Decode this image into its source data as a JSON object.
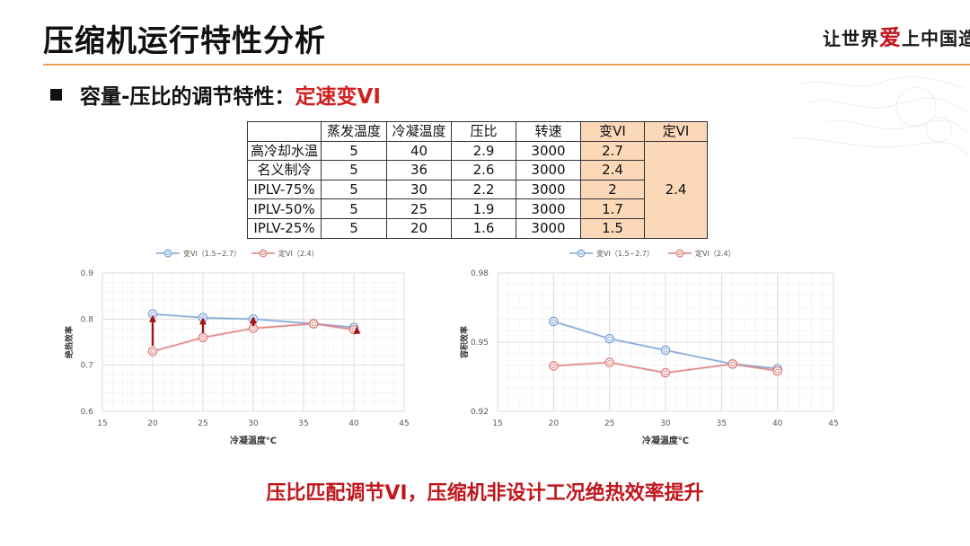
{
  "page": {
    "title": "压缩机运行特性分析",
    "subtitle_prefix": "容量-压比的调节特性：",
    "subtitle_accent": "定速变VI",
    "footer": "压比匹配调节VI，压缩机非设计工况绝热效率提升"
  },
  "logo": {
    "part1": "让世界",
    "part2": "爱",
    "part3": "上中国造"
  },
  "colors": {
    "accent_red": "#d11f1f",
    "rule_orange": "#e8a25a",
    "shade_orange": "#fbd8b8",
    "series_blue": "#7ea4d8",
    "series_red": "#e07f7f",
    "arrow_dark_red": "#a21212"
  },
  "table": {
    "headers": [
      "",
      "蒸发温度",
      "冷凝温度",
      "压比",
      "转速",
      "变VI",
      "定VI"
    ],
    "rows": [
      {
        "label": "高冷却水温",
        "evap": "5",
        "cond": "40",
        "ratio": "2.9",
        "speed": "3000",
        "vvi": "2.7"
      },
      {
        "label": "名义制冷",
        "evap": "5",
        "cond": "36",
        "ratio": "2.6",
        "speed": "3000",
        "vvi": "2.4"
      },
      {
        "label": "IPLV-75%",
        "evap": "5",
        "cond": "30",
        "ratio": "2.2",
        "speed": "3000",
        "vvi": "2"
      },
      {
        "label": "IPLV-50%",
        "evap": "5",
        "cond": "25",
        "ratio": "1.9",
        "speed": "3000",
        "vvi": "1.7"
      },
      {
        "label": "IPLV-25%",
        "evap": "5",
        "cond": "20",
        "ratio": "1.6",
        "speed": "3000",
        "vvi": "1.5"
      }
    ],
    "fixed_vi": "2.4"
  },
  "chart_data": [
    {
      "type": "line",
      "xlabel": "冷凝温度℃",
      "ylabel": "绝热效率",
      "xlim": [
        15,
        45
      ],
      "ylim": [
        0.6,
        0.9
      ],
      "xticks": [
        "15",
        "20",
        "25",
        "30",
        "35",
        "40",
        "45"
      ],
      "yticks": [
        "0.6",
        "0.7",
        "0.8",
        "0.9"
      ],
      "legend_position": "top",
      "grid": true,
      "series": [
        {
          "name": "变VI（1.5~2.7）",
          "color": "#7ea4d8",
          "x": [
            20,
            25,
            30,
            36,
            40
          ],
          "y": [
            0.811,
            0.803,
            0.8,
            0.79,
            0.782
          ]
        },
        {
          "name": "定VI（2.4）",
          "color": "#e07f7f",
          "x": [
            20,
            25,
            30,
            36,
            40
          ],
          "y": [
            0.73,
            0.76,
            0.78,
            0.79,
            0.777
          ]
        }
      ],
      "arrows": [
        {
          "x": 20,
          "from": 0.742,
          "to": 0.805
        },
        {
          "x": 25,
          "from": 0.77,
          "to": 0.8
        },
        {
          "x": 30,
          "from": 0.785,
          "to": 0.802
        },
        {
          "x": 40.3,
          "from": 0.768,
          "to": 0.78
        }
      ]
    },
    {
      "type": "line",
      "xlabel": "冷凝温度℃",
      "ylabel": "容积效率",
      "xlim": [
        15,
        45
      ],
      "ylim": [
        0.92,
        0.98
      ],
      "xticks": [
        "15",
        "20",
        "25",
        "30",
        "35",
        "40",
        "45"
      ],
      "yticks": [
        "0.92",
        "0.95",
        "0.98"
      ],
      "legend_position": "top",
      "grid": true,
      "series": [
        {
          "name": "变VI（1.5~2.7）",
          "color": "#7ea4d8",
          "x": [
            20,
            25,
            30,
            36,
            40
          ],
          "y": [
            0.959,
            0.9515,
            0.9465,
            0.9405,
            0.9385
          ]
        },
        {
          "name": "定VI（2.4）",
          "color": "#e07f7f",
          "x": [
            20,
            25,
            30,
            36,
            40
          ],
          "y": [
            0.9397,
            0.9412,
            0.9367,
            0.9405,
            0.9375
          ]
        }
      ]
    }
  ]
}
